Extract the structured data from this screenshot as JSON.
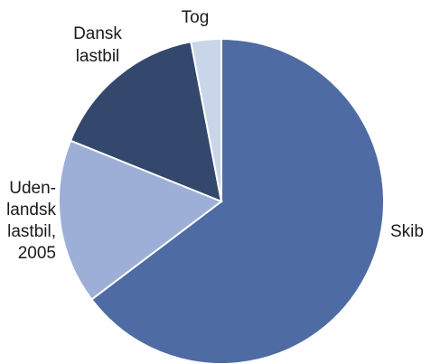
{
  "chart_data": {
    "type": "pie",
    "title": "",
    "start_angle_deg": 0,
    "direction": "clockwise",
    "slices": [
      {
        "label": "Skib",
        "label_lines": [
          "Skib"
        ],
        "value": 64.7,
        "color": "#4f6ba3"
      },
      {
        "label": "Uden-landsk lastbil, 2005",
        "label_lines": [
          "Uden-",
          "landsk",
          "lastbil,",
          "2005"
        ],
        "value": 16.4,
        "color": "#9dafd6"
      },
      {
        "label": "Dansk lastbil",
        "label_lines": [
          "Dansk",
          "lastbil"
        ],
        "value": 15.9,
        "color": "#34476d"
      },
      {
        "label": "Tog",
        "label_lines": [
          "Tog"
        ],
        "value": 3.0,
        "color": "#c9d6ea"
      }
    ]
  }
}
